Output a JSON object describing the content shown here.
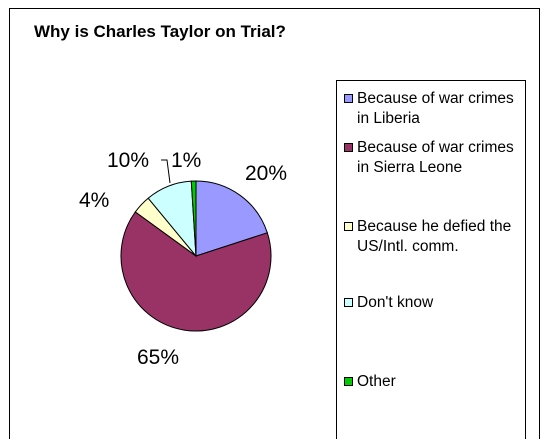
{
  "chart_data": {
    "type": "pie",
    "title": "Why is Charles Taylor on Trial?",
    "categories": [
      "Because of war crimes in Liberia",
      "Because of war crimes in Sierra Leone",
      "Because he defied the US/Intl. comm.",
      "Don't know",
      "Other"
    ],
    "values": [
      20,
      65,
      4,
      10,
      1
    ],
    "labels": [
      "20%",
      "65%",
      "4%",
      "10%",
      "1%"
    ],
    "colors": [
      "#9999ff",
      "#993366",
      "#ffffcc",
      "#ccffff",
      "#00cc00"
    ],
    "legend": "right"
  },
  "legend": {
    "items": [
      {
        "label": "Because of war crimes in Liberia",
        "color": "#9999ff"
      },
      {
        "label": "Because of war crimes in Sierra Leone",
        "color": "#993366"
      },
      {
        "label": "Because he defied the US/Intl. comm.",
        "color": "#ffffcc"
      },
      {
        "label": "Don't know",
        "color": "#ccffff"
      },
      {
        "label": "Other",
        "color": "#00cc00"
      }
    ]
  }
}
